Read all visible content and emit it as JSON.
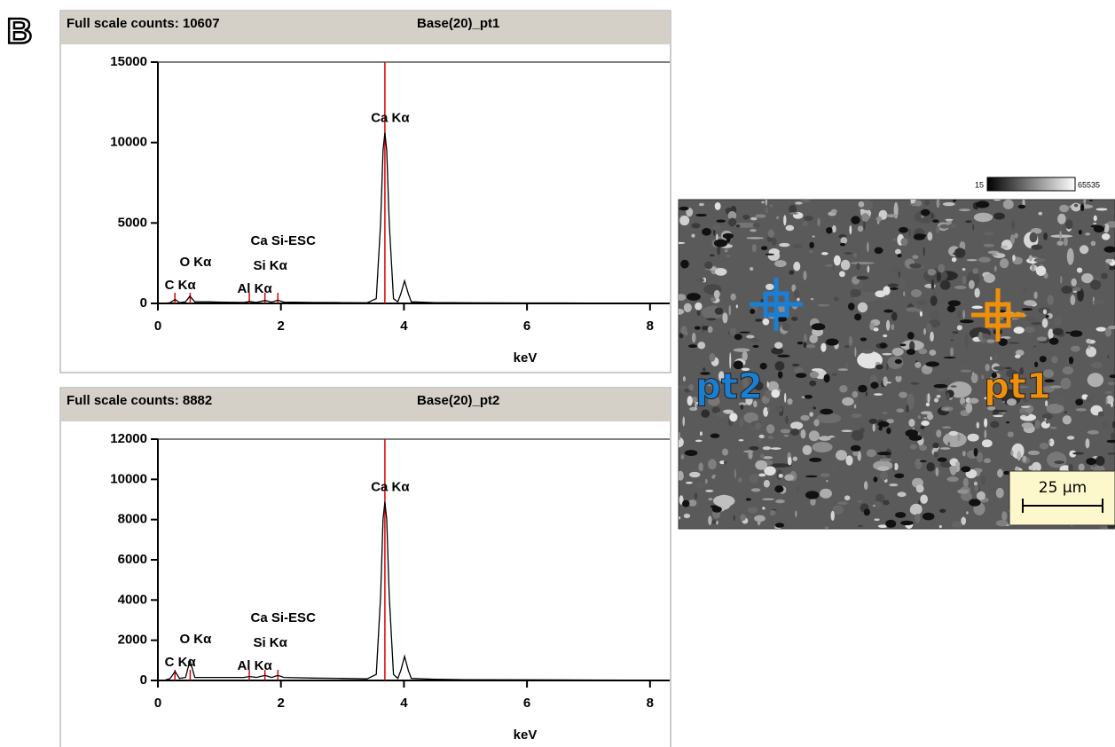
{
  "panel_label": "B",
  "chart_data": [
    {
      "type": "line",
      "title": "Base(20)_pt1",
      "subtitle": "Full scale counts: 10607",
      "xlabel": "keV",
      "x": [
        0.1,
        0.2,
        0.28,
        0.35,
        0.45,
        0.52,
        0.6,
        0.8,
        1.0,
        1.4,
        1.49,
        1.6,
        1.74,
        1.85,
        1.95,
        2.05,
        2.5,
        3.0,
        3.4,
        3.55,
        3.62,
        3.66,
        3.69,
        3.72,
        3.76,
        3.83,
        3.9,
        3.95,
        4.01,
        4.07,
        4.12,
        4.5,
        5.0,
        6.0,
        7.0,
        8.3
      ],
      "values": [
        0,
        50,
        250,
        50,
        100,
        450,
        100,
        100,
        80,
        60,
        120,
        60,
        180,
        80,
        200,
        80,
        60,
        50,
        40,
        300,
        5000,
        9500,
        10607,
        9500,
        5000,
        300,
        100,
        600,
        1400,
        600,
        100,
        50,
        40,
        30,
        20,
        10
      ],
      "color": "#000000",
      "marker_color": "#e00000",
      "annotation_color": "#1f1fc8",
      "annotations": [
        {
          "label": "C Kα",
          "x": 0.277
        },
        {
          "label": "O Kα",
          "x": 0.525
        },
        {
          "label": "Al Kα",
          "x": 1.486
        },
        {
          "label": "Si Kα",
          "x": 1.74
        },
        {
          "label": "Ca Si-ESC",
          "x": 1.95
        },
        {
          "label": "Ca Kα",
          "x": 3.69
        }
      ],
      "xlim": [
        0,
        8.32
      ],
      "xticks": [
        0,
        2,
        4,
        6,
        8
      ],
      "ylim": [
        0,
        15000
      ],
      "yticks": [
        0,
        5000,
        10000,
        15000
      ],
      "grid": false
    },
    {
      "type": "line",
      "title": "Base(20)_pt2",
      "subtitle": "Full scale counts: 8882",
      "xlabel": "keV",
      "x": [
        0.1,
        0.2,
        0.28,
        0.35,
        0.45,
        0.52,
        0.6,
        0.8,
        1.0,
        1.4,
        1.49,
        1.6,
        1.74,
        1.85,
        1.95,
        2.05,
        2.5,
        3.0,
        3.4,
        3.55,
        3.62,
        3.66,
        3.69,
        3.72,
        3.76,
        3.83,
        3.9,
        3.95,
        4.01,
        4.07,
        4.12,
        4.5,
        5.0,
        6.0,
        7.0,
        8.3
      ],
      "values": [
        0,
        100,
        450,
        100,
        150,
        1000,
        150,
        150,
        150,
        150,
        200,
        150,
        250,
        150,
        250,
        150,
        120,
        100,
        80,
        300,
        4200,
        8000,
        8882,
        8000,
        4200,
        300,
        100,
        500,
        1200,
        500,
        100,
        60,
        40,
        30,
        20,
        10
      ],
      "color": "#000000",
      "marker_color": "#e00000",
      "annotation_color": "#1f1fc8",
      "annotations": [
        {
          "label": "C Kα",
          "x": 0.277
        },
        {
          "label": "O Kα",
          "x": 0.525
        },
        {
          "label": "Al Kα",
          "x": 1.486
        },
        {
          "label": "Si Kα",
          "x": 1.74
        },
        {
          "label": "Ca Si-ESC",
          "x": 1.95
        },
        {
          "label": "Ca Kα",
          "x": 3.69
        }
      ],
      "xlim": [
        0,
        8.32
      ],
      "xticks": [
        0,
        2,
        4,
        6,
        8
      ],
      "ylim": [
        0,
        12000
      ],
      "yticks": [
        0,
        2000,
        4000,
        6000,
        8000,
        10000,
        12000
      ],
      "grid": false
    }
  ],
  "image": {
    "colorbar_labels": [
      "15",
      "65535"
    ],
    "points": [
      {
        "label": "pt2",
        "color": "#1a7fd4"
      },
      {
        "label": "pt1",
        "color": "#f0900a"
      }
    ],
    "scale_bar": "25 µm"
  }
}
